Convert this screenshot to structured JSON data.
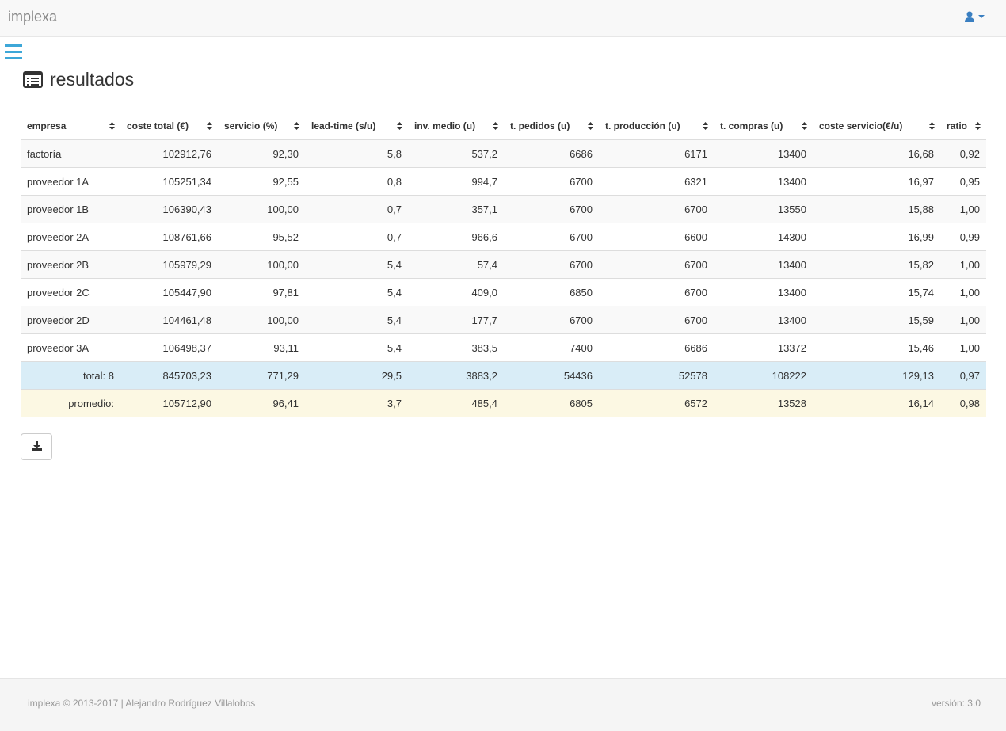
{
  "header": {
    "brand": "implexa"
  },
  "page": {
    "title": "resultados"
  },
  "table": {
    "columns": [
      "empresa",
      "coste total (€)",
      "servicio (%)",
      "lead-time (s/u)",
      "inv. medio (u)",
      "t. pedidos (u)",
      "t. producción (u)",
      "t. compras (u)",
      "coste servicio(€/u)",
      "ratio"
    ],
    "rows": [
      [
        "factoría",
        "102912,76",
        "92,30",
        "5,8",
        "537,2",
        "6686",
        "6171",
        "13400",
        "16,68",
        "0,92"
      ],
      [
        "proveedor 1A",
        "105251,34",
        "92,55",
        "0,8",
        "994,7",
        "6700",
        "6321",
        "13400",
        "16,97",
        "0,95"
      ],
      [
        "proveedor 1B",
        "106390,43",
        "100,00",
        "0,7",
        "357,1",
        "6700",
        "6700",
        "13550",
        "15,88",
        "1,00"
      ],
      [
        "proveedor 2A",
        "108761,66",
        "95,52",
        "0,7",
        "966,6",
        "6700",
        "6600",
        "14300",
        "16,99",
        "0,99"
      ],
      [
        "proveedor 2B",
        "105979,29",
        "100,00",
        "5,4",
        "57,4",
        "6700",
        "6700",
        "13400",
        "15,82",
        "1,00"
      ],
      [
        "proveedor 2C",
        "105447,90",
        "97,81",
        "5,4",
        "409,0",
        "6850",
        "6700",
        "13400",
        "15,74",
        "1,00"
      ],
      [
        "proveedor 2D",
        "104461,48",
        "100,00",
        "5,4",
        "177,7",
        "6700",
        "6700",
        "13400",
        "15,59",
        "1,00"
      ],
      [
        "proveedor 3A",
        "106498,37",
        "93,11",
        "5,4",
        "383,5",
        "7400",
        "6686",
        "13372",
        "15,46",
        "1,00"
      ]
    ],
    "total": [
      "total: 8",
      "845703,23",
      "771,29",
      "29,5",
      "3883,2",
      "54436",
      "52578",
      "108222",
      "129,13",
      "0,97"
    ],
    "average": [
      "promedio:",
      "105712,90",
      "96,41",
      "3,7",
      "485,4",
      "6805",
      "6572",
      "13528",
      "16,14",
      "0,98"
    ]
  },
  "footer": {
    "credits": "implexa © 2013-2017 | Alejandro Rodríguez Villalobos",
    "version": "versión: 3.0"
  }
}
